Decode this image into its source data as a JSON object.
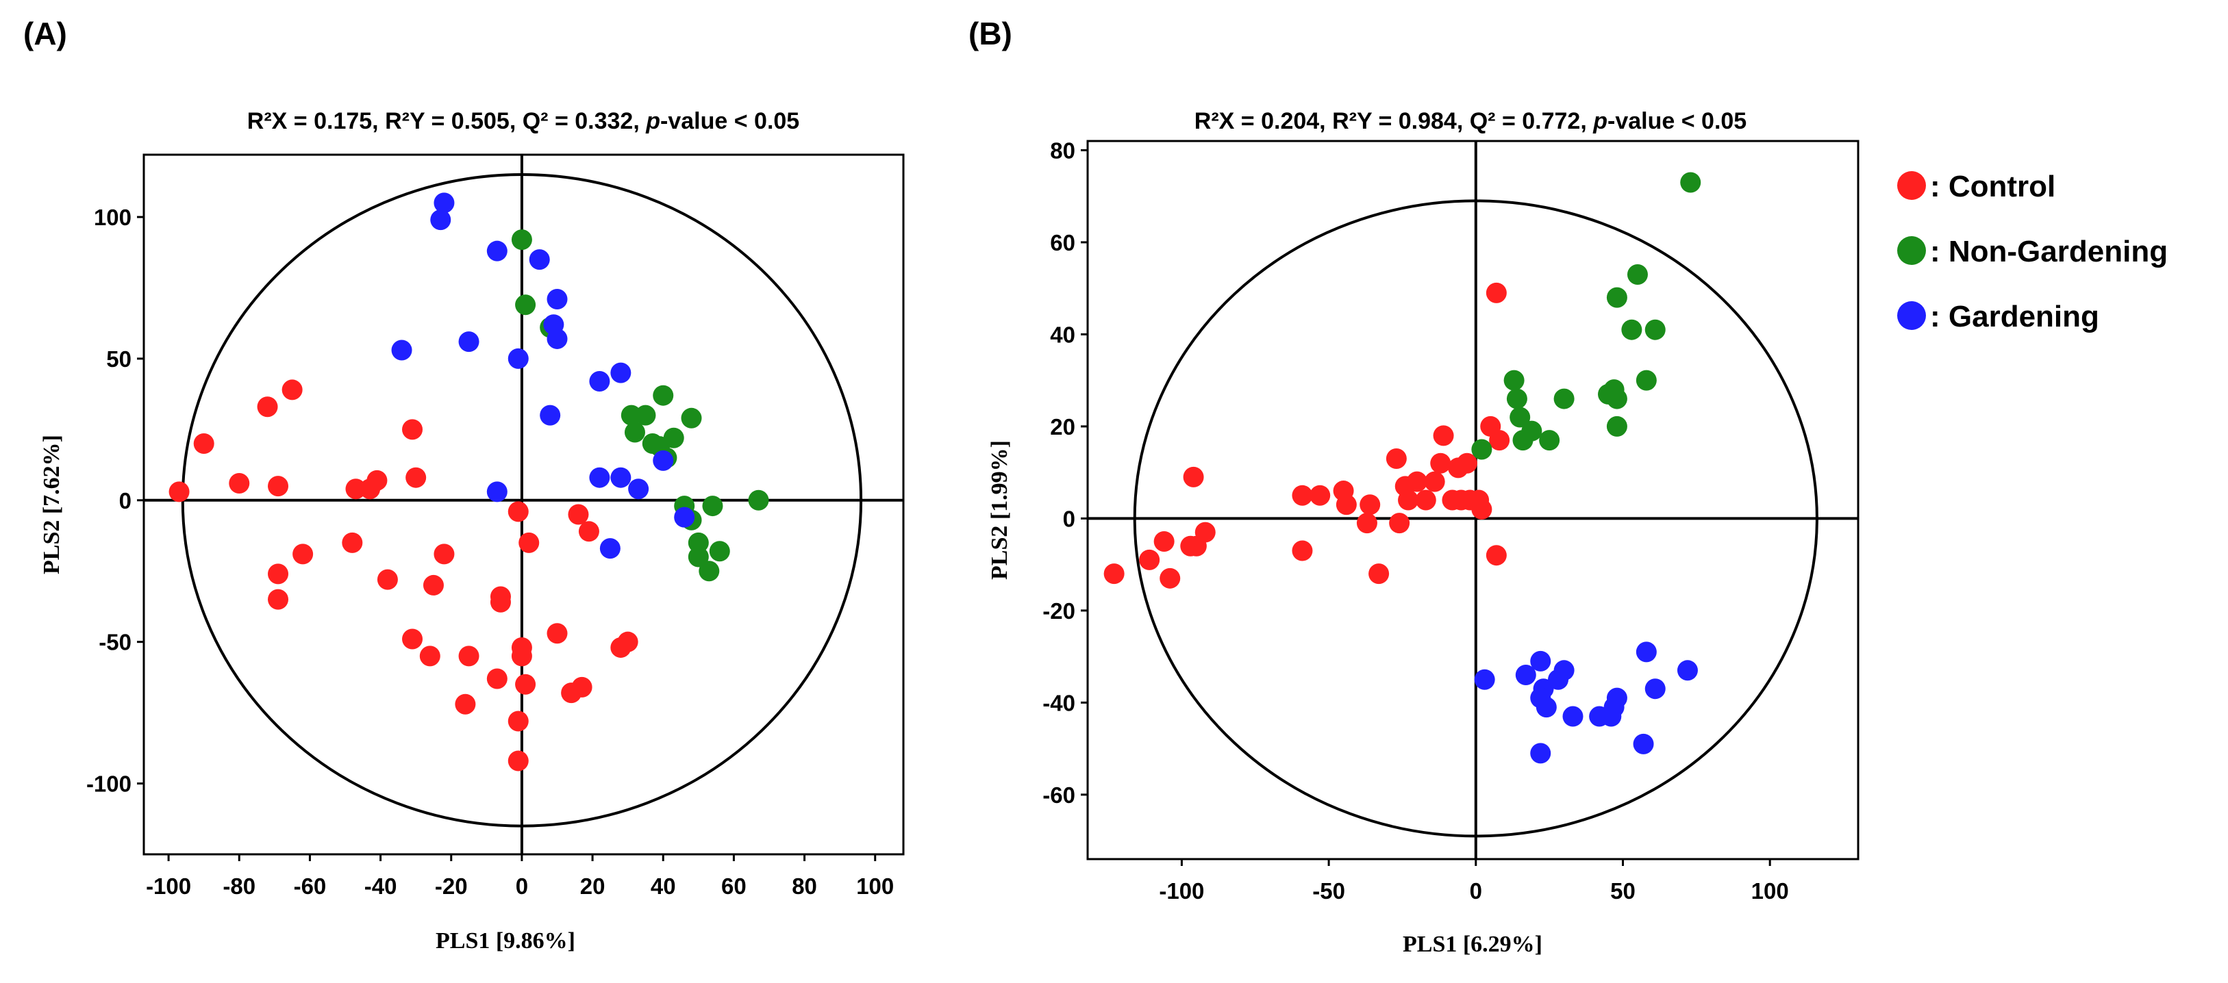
{
  "legend": {
    "items": [
      {
        "label": ": Control",
        "color": "#ff2020"
      },
      {
        "label": ": Non-Gardening",
        "color": "#1a8c1a"
      },
      {
        "label": ": Gardening",
        "color": "#2020ff"
      }
    ]
  },
  "chart_data": [
    {
      "type": "scatter",
      "panel_label": "(A)",
      "title": {
        "pre": "R²X = 0.175, R²Y = 0.505, Q² = 0.332, ",
        "italic": "p",
        "post": "-value < 0.05"
      },
      "xlabel": "PLS1 [9.86%]",
      "ylabel": "PLS2 [7.62%]",
      "xlim": [
        -107,
        108
      ],
      "ylim": [
        -125,
        122
      ],
      "xticks": [
        -100,
        -80,
        -60,
        -40,
        -20,
        0,
        20,
        40,
        60,
        80,
        100
      ],
      "yticks": [
        -100,
        -50,
        0,
        50,
        100
      ],
      "ellipse": {
        "rx": 96,
        "ry": 115
      },
      "series": [
        {
          "name": "Control",
          "color": "#ff2020",
          "points": [
            [
              -97,
              3
            ],
            [
              -90,
              20
            ],
            [
              -80,
              6
            ],
            [
              -72,
              33
            ],
            [
              -69,
              5
            ],
            [
              -65,
              39
            ],
            [
              -47,
              4
            ],
            [
              -43,
              4
            ],
            [
              -41,
              7
            ],
            [
              -31,
              25
            ],
            [
              -30,
              8
            ],
            [
              -62,
              -19
            ],
            [
              -69,
              -26
            ],
            [
              -69,
              -35
            ],
            [
              -48,
              -15
            ],
            [
              -38,
              -28
            ],
            [
              -25,
              -30
            ],
            [
              -22,
              -19
            ],
            [
              -31,
              -49
            ],
            [
              -26,
              -55
            ],
            [
              -15,
              -55
            ],
            [
              -16,
              -72
            ],
            [
              -7,
              -63
            ],
            [
              -6,
              -36
            ],
            [
              -6,
              -34
            ],
            [
              -1,
              -4
            ],
            [
              2,
              -15
            ],
            [
              0,
              -52
            ],
            [
              0,
              -55
            ],
            [
              1,
              -65
            ],
            [
              -1,
              -78
            ],
            [
              -1,
              -92
            ],
            [
              10,
              -47
            ],
            [
              16,
              -5
            ],
            [
              19,
              -11
            ],
            [
              17,
              -66
            ],
            [
              14,
              -68
            ],
            [
              28,
              -52
            ],
            [
              30,
              -50
            ]
          ]
        },
        {
          "name": "Non-Gardening",
          "color": "#1a8c1a",
          "points": [
            [
              0,
              92
            ],
            [
              1,
              69
            ],
            [
              8,
              61
            ],
            [
              31,
              30
            ],
            [
              35,
              30
            ],
            [
              32,
              24
            ],
            [
              37,
              20
            ],
            [
              39,
              19
            ],
            [
              40,
              37
            ],
            [
              41,
              15
            ],
            [
              43,
              22
            ],
            [
              48,
              29
            ],
            [
              46,
              -2
            ],
            [
              48,
              -7
            ],
            [
              50,
              -15
            ],
            [
              50,
              -20
            ],
            [
              53,
              -25
            ],
            [
              54,
              -2
            ],
            [
              56,
              -18
            ],
            [
              67,
              0
            ]
          ]
        },
        {
          "name": "Gardening",
          "color": "#2020ff",
          "points": [
            [
              -22,
              105
            ],
            [
              -23,
              99
            ],
            [
              -7,
              88
            ],
            [
              5,
              85
            ],
            [
              10,
              71
            ],
            [
              9,
              62
            ],
            [
              10,
              57
            ],
            [
              -1,
              50
            ],
            [
              -15,
              56
            ],
            [
              -34,
              53
            ],
            [
              8,
              30
            ],
            [
              22,
              42
            ],
            [
              28,
              45
            ],
            [
              22,
              8
            ],
            [
              28,
              8
            ],
            [
              33,
              4
            ],
            [
              40,
              14
            ],
            [
              25,
              -17
            ],
            [
              46,
              -6
            ],
            [
              -7,
              3
            ]
          ]
        }
      ]
    },
    {
      "type": "scatter",
      "panel_label": "(B)",
      "title": {
        "pre": "R²X = 0.204, R²Y = 0.984, Q² = 0.772, ",
        "italic": "p",
        "post": "-value < 0.05"
      },
      "xlabel": "PLS1 [6.29%]",
      "ylabel": "PLS2 [1.99%]",
      "xlim": [
        -132,
        130
      ],
      "ylim": [
        -74,
        82
      ],
      "xticks": [
        -100,
        -50,
        0,
        50,
        100
      ],
      "yticks": [
        -60,
        -40,
        -20,
        0,
        20,
        40,
        60,
        80
      ],
      "ellipse": {
        "rx": 116,
        "ry": 69
      },
      "series": [
        {
          "name": "Control",
          "color": "#ff2020",
          "points": [
            [
              -123,
              -12
            ],
            [
              -111,
              -9
            ],
            [
              -106,
              -5
            ],
            [
              -104,
              -13
            ],
            [
              -97,
              -6
            ],
            [
              -95,
              -6
            ],
            [
              -92,
              -3
            ],
            [
              -96,
              9
            ],
            [
              -59,
              5
            ],
            [
              -53,
              5
            ],
            [
              -59,
              -7
            ],
            [
              -45,
              6
            ],
            [
              -44,
              3
            ],
            [
              -37,
              -1
            ],
            [
              -36,
              3
            ],
            [
              -33,
              -12
            ],
            [
              -27,
              13
            ],
            [
              -26,
              -1
            ],
            [
              -24,
              7
            ],
            [
              -23,
              4
            ],
            [
              -20,
              8
            ],
            [
              -17,
              4
            ],
            [
              -14,
              8
            ],
            [
              -12,
              12
            ],
            [
              -11,
              18
            ],
            [
              -8,
              4
            ],
            [
              -6,
              11
            ],
            [
              -5,
              4
            ],
            [
              -3,
              12
            ],
            [
              -2,
              4
            ],
            [
              1,
              4
            ],
            [
              2,
              2
            ],
            [
              5,
              20
            ],
            [
              8,
              17
            ],
            [
              7,
              -8
            ],
            [
              7,
              49
            ]
          ]
        },
        {
          "name": "Non-Gardening",
          "color": "#1a8c1a",
          "points": [
            [
              73,
              73
            ],
            [
              55,
              53
            ],
            [
              48,
              48
            ],
            [
              53,
              41
            ],
            [
              61,
              41
            ],
            [
              58,
              30
            ],
            [
              45,
              27
            ],
            [
              47,
              28
            ],
            [
              48,
              26
            ],
            [
              48,
              20
            ],
            [
              30,
              26
            ],
            [
              25,
              17
            ],
            [
              19,
              19
            ],
            [
              16,
              17
            ],
            [
              15,
              22
            ],
            [
              14,
              26
            ],
            [
              13,
              30
            ],
            [
              2,
              15
            ]
          ]
        },
        {
          "name": "Gardening",
          "color": "#2020ff",
          "points": [
            [
              3,
              -35
            ],
            [
              17,
              -34
            ],
            [
              22,
              -31
            ],
            [
              23,
              -37
            ],
            [
              24,
              -41
            ],
            [
              22,
              -39
            ],
            [
              28,
              -35
            ],
            [
              30,
              -33
            ],
            [
              33,
              -43
            ],
            [
              42,
              -43
            ],
            [
              46,
              -43
            ],
            [
              48,
              -39
            ],
            [
              47,
              -41
            ],
            [
              57,
              -49
            ],
            [
              58,
              -29
            ],
            [
              61,
              -37
            ],
            [
              72,
              -33
            ],
            [
              22,
              -51
            ]
          ]
        }
      ]
    }
  ]
}
